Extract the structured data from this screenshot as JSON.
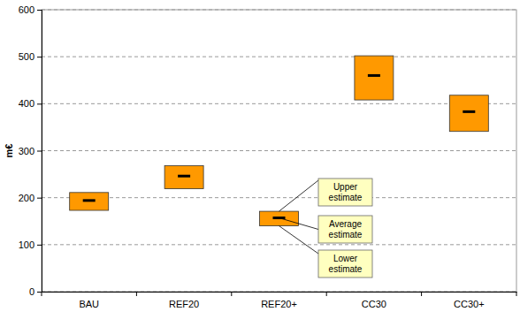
{
  "chart_data": {
    "type": "range",
    "categories": [
      "BAU",
      "REF20",
      "REF20+",
      "CC30",
      "CC30+"
    ],
    "lower": [
      173,
      219,
      140,
      408,
      341
    ],
    "upper": [
      211,
      268,
      171,
      502,
      418
    ],
    "average": [
      194,
      246,
      157,
      460,
      383
    ],
    "color": "#ff9900",
    "y_label": "m€",
    "ylim": [
      0,
      600
    ],
    "yticks": [
      0,
      100,
      200,
      300,
      400,
      500,
      600
    ],
    "grid": true,
    "annotations": {
      "category": "REF20+",
      "upper": "Upper estimate",
      "average": "Average estimate",
      "lower": "Lower estimate"
    }
  }
}
